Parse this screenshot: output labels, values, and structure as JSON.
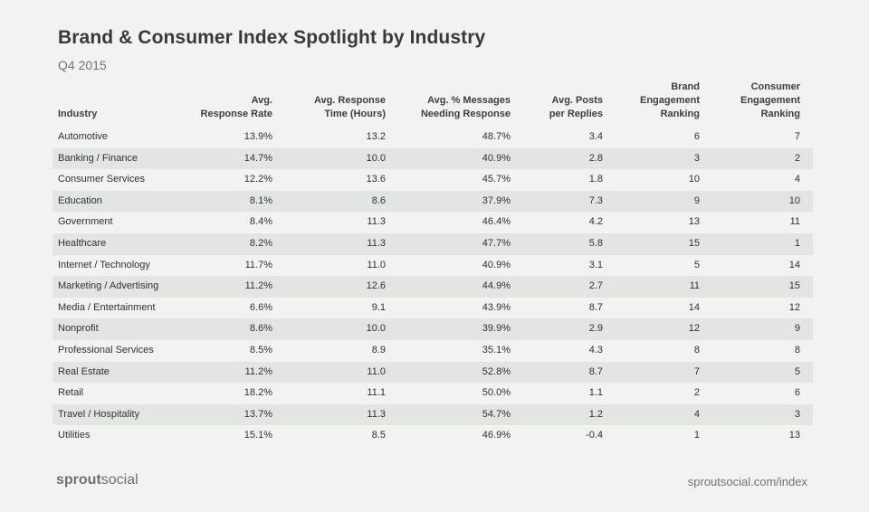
{
  "title": "Brand & Consumer Index Spotlight by Industry",
  "subtitle": "Q4 2015",
  "chart_data": {
    "type": "table",
    "title": "Brand & Consumer Index Spotlight by Industry",
    "subtitle": "Q4 2015",
    "columns": [
      "Industry",
      "Avg. Response Rate",
      "Avg. Response Time (Hours)",
      "Avg. % Messages Needing Response",
      "Avg. Posts per Replies",
      "Brand Engagement Ranking",
      "Consumer Engagement Ranking"
    ],
    "header_lines": [
      [
        "Industry"
      ],
      [
        "Avg.",
        "Response Rate"
      ],
      [
        "Avg. Response",
        "Time (Hours)"
      ],
      [
        "Avg. % Messages",
        "Needing Response"
      ],
      [
        "Avg. Posts",
        "per Replies"
      ],
      [
        "Brand",
        "Engagement",
        "Ranking"
      ],
      [
        "Consumer",
        "Engagement",
        "Ranking"
      ]
    ],
    "rows": [
      [
        "Automotive",
        "13.9%",
        "13.2",
        "48.7%",
        "3.4",
        "6",
        "7"
      ],
      [
        "Banking / Finance",
        "14.7%",
        "10.0",
        "40.9%",
        "2.8",
        "3",
        "2"
      ],
      [
        "Consumer Services",
        "12.2%",
        "13.6",
        "45.7%",
        "1.8",
        "10",
        "4"
      ],
      [
        "Education",
        "8.1%",
        "8.6",
        "37.9%",
        "7.3",
        "9",
        "10"
      ],
      [
        "Government",
        "8.4%",
        "11.3",
        "46.4%",
        "4.2",
        "13",
        "11"
      ],
      [
        "Healthcare",
        "8.2%",
        "11.3",
        "47.7%",
        "5.8",
        "15",
        "1"
      ],
      [
        "Internet / Technology",
        "11.7%",
        "11.0",
        "40.9%",
        "3.1",
        "5",
        "14"
      ],
      [
        "Marketing / Advertising",
        "11.2%",
        "12.6",
        "44.9%",
        "2.7",
        "11",
        "15"
      ],
      [
        "Media / Entertainment",
        "6.6%",
        "9.1",
        "43.9%",
        "8.7",
        "14",
        "12"
      ],
      [
        "Nonprofit",
        "8.6%",
        "10.0",
        "39.9%",
        "2.9",
        "12",
        "9"
      ],
      [
        "Professional Services",
        "8.5%",
        "8.9",
        "35.1%",
        "4.3",
        "8",
        "8"
      ],
      [
        "Real Estate",
        "11.2%",
        "11.0",
        "52.8%",
        "8.7",
        "7",
        "5"
      ],
      [
        "Retail",
        "18.2%",
        "11.1",
        "50.0%",
        "1.1",
        "2",
        "6"
      ],
      [
        "Travel / Hospitality",
        "13.7%",
        "11.3",
        "54.7%",
        "1.2",
        "4",
        "3"
      ],
      [
        "Utilities",
        "15.1%",
        "8.5",
        "46.9%",
        "-0.4",
        "1",
        "13"
      ]
    ]
  },
  "footer": {
    "logo_part1": "sprout",
    "logo_part2": "social",
    "url": "sproutsocial.com/index"
  },
  "colors": {
    "background": "#f1f2f1",
    "row_shade": "#e3e5e3",
    "text": "#2f3330",
    "muted": "#6e7370"
  }
}
